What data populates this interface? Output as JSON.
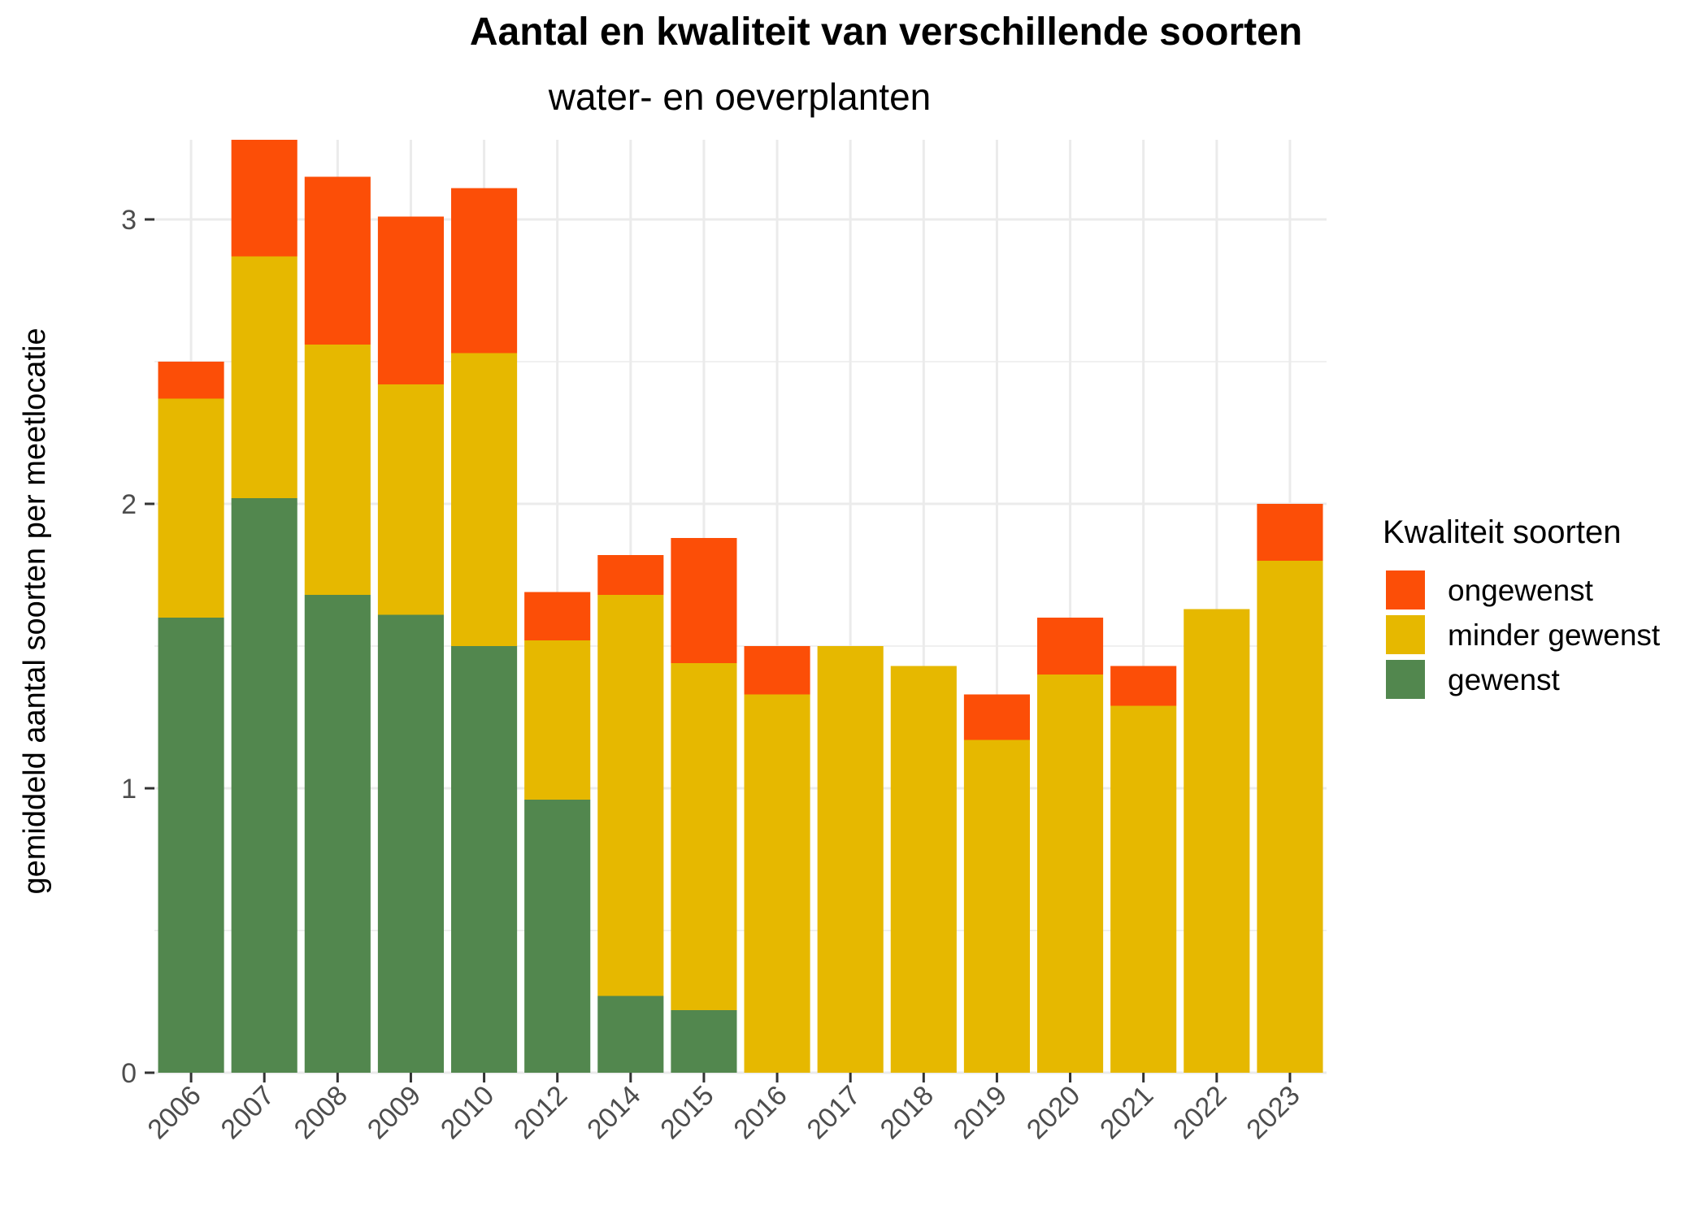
{
  "chart_data": {
    "type": "bar",
    "stacked": true,
    "title": "Aantal en kwaliteit van verschillende soorten",
    "subtitle": "water- en oeverplanten",
    "xlabel": "",
    "ylabel": "gemiddeld aantal soorten per meetlocatie",
    "categories": [
      "2006",
      "2007",
      "2008",
      "2009",
      "2010",
      "2012",
      "2014",
      "2015",
      "2016",
      "2017",
      "2018",
      "2019",
      "2020",
      "2021",
      "2022",
      "2023"
    ],
    "series": [
      {
        "name": "gewenst",
        "color": "#52874E",
        "values": [
          1.6,
          2.02,
          1.68,
          1.61,
          1.5,
          0.96,
          0.27,
          0.22,
          0,
          0,
          0,
          0,
          0,
          0,
          0,
          0
        ]
      },
      {
        "name": "minder gewenst",
        "color": "#E6B800",
        "values": [
          0.77,
          0.85,
          0.88,
          0.81,
          1.03,
          0.56,
          1.41,
          1.22,
          1.33,
          1.5,
          1.43,
          1.17,
          1.4,
          1.29,
          1.63,
          1.8
        ]
      },
      {
        "name": "ongewenst",
        "color": "#FC4E07",
        "values": [
          0.13,
          0.41,
          0.59,
          0.59,
          0.58,
          0.17,
          0.14,
          0.44,
          0.17,
          0,
          0,
          0.16,
          0.2,
          0.14,
          0,
          0.2
        ]
      }
    ],
    "ylim": [
      0,
      3.28
    ],
    "yticks": [
      0,
      1,
      2,
      3
    ],
    "grid": true,
    "legend": {
      "title": "Kwaliteit soorten",
      "position": "right",
      "order": [
        "ongewenst",
        "minder gewenst",
        "gewenst"
      ]
    }
  }
}
